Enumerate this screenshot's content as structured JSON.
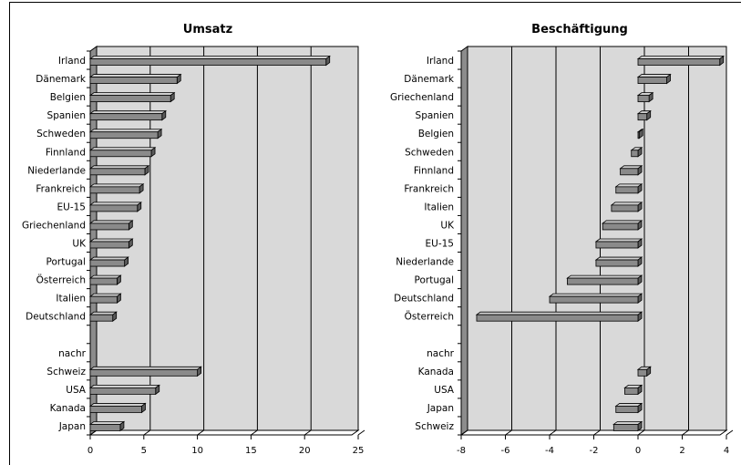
{
  "colors": {
    "plot_bg": "#d9d9d9",
    "side_wall": "#8c8c8c",
    "floor": "#ffffff",
    "bar_front": "#8a8a8a",
    "bar_top": "#d0d0d0",
    "bar_side": "#5a5a5a",
    "grid": "#000000",
    "text": "#000000"
  },
  "chart_data": [
    {
      "type": "bar",
      "orientation": "horizontal",
      "style": "3d",
      "title": "Umsatz",
      "xlabel": "",
      "ylabel": "",
      "xlim": [
        0,
        25
      ],
      "xticks": [
        "0",
        "5",
        "10",
        "15",
        "20",
        "25"
      ],
      "grid": true,
      "categories": [
        "Irland",
        "Dänemark",
        "Belgien",
        "Spanien",
        "Schweden",
        "Finnland",
        "Niederlande",
        "Frankreich",
        "EU-15",
        "Griechenland",
        "UK",
        "Portugal",
        "Österreich",
        "Italien",
        "Deutschland",
        "",
        "nachr",
        "Schweiz",
        "USA",
        "Kanada",
        "Japan"
      ],
      "values": [
        22.0,
        8.1,
        7.5,
        6.7,
        6.3,
        5.7,
        5.1,
        4.6,
        4.4,
        3.6,
        3.6,
        3.2,
        2.5,
        2.5,
        2.1,
        null,
        null,
        10.0,
        6.1,
        4.8,
        2.8
      ]
    },
    {
      "type": "bar",
      "orientation": "horizontal",
      "style": "3d",
      "title": "Beschäftigung",
      "xlabel": "",
      "ylabel": "",
      "xlim": [
        -8,
        4
      ],
      "xticks": [
        "-8",
        "-6",
        "-4",
        "-2",
        "0",
        "2",
        "4"
      ],
      "grid": true,
      "categories": [
        "Irland",
        "Dänemark",
        "Griechenland",
        "Spanien",
        "Belgien",
        "Schweden",
        "Finnland",
        "Frankreich",
        "Italien",
        "UK",
        "EU-15",
        "Niederlande",
        "Portugal",
        "Deutschland",
        "Österreich",
        "",
        "nachr",
        "Kanada",
        "USA",
        "Japan",
        "Schweiz"
      ],
      "values": [
        3.7,
        1.3,
        0.5,
        0.4,
        0.05,
        -0.3,
        -0.8,
        -1.0,
        -1.2,
        -1.6,
        -1.9,
        -1.9,
        -3.2,
        -4.0,
        -7.3,
        null,
        null,
        0.4,
        -0.6,
        -1.0,
        -1.1
      ]
    }
  ]
}
